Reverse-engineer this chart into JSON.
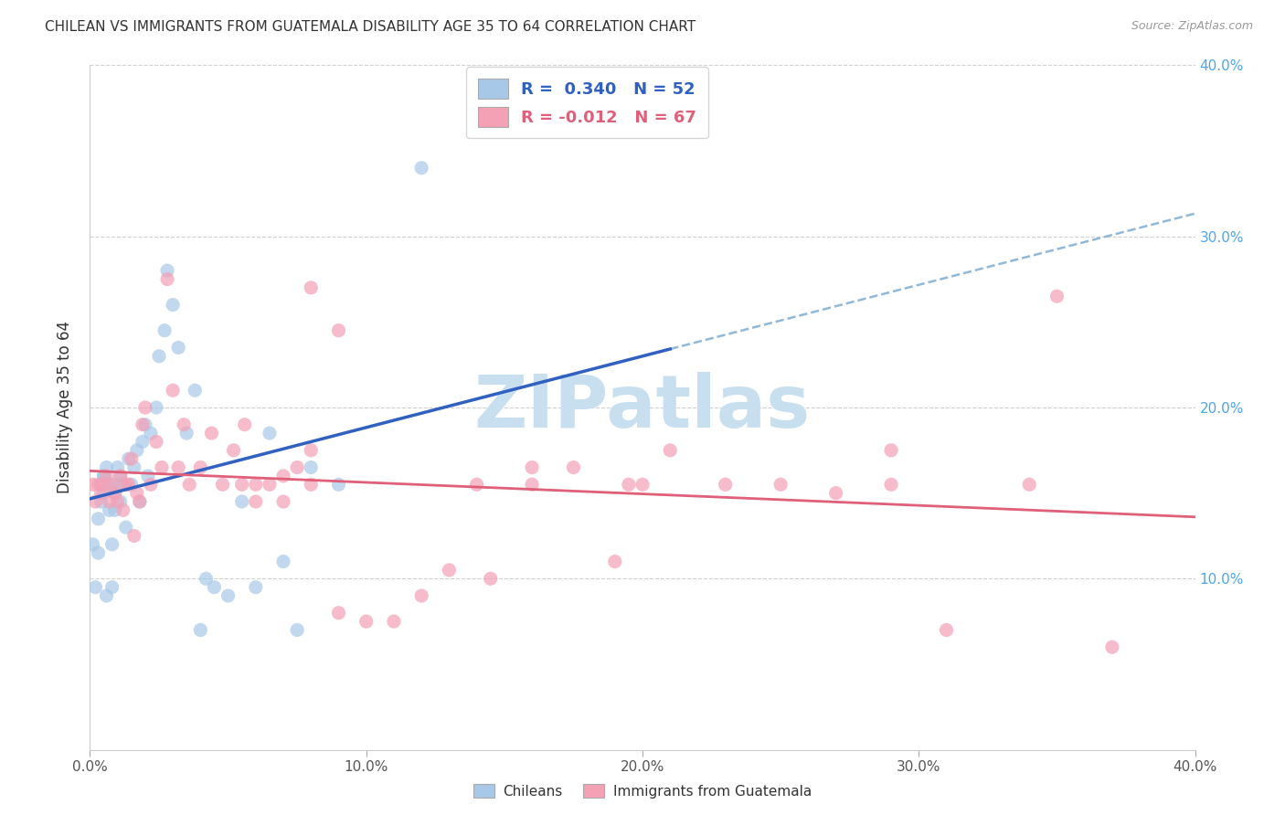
{
  "title": "CHILEAN VS IMMIGRANTS FROM GUATEMALA DISABILITY AGE 35 TO 64 CORRELATION CHART",
  "source": "Source: ZipAtlas.com",
  "ylabel_text": "Disability Age 35 to 64",
  "legend_label_1": "Chileans",
  "legend_label_2": "Immigrants from Guatemala",
  "R1": "0.340",
  "N1": "52",
  "R2": "-0.012",
  "N2": "67",
  "xlim": [
    0.0,
    0.4
  ],
  "ylim": [
    0.0,
    0.4
  ],
  "xticks": [
    0.0,
    0.1,
    0.2,
    0.3,
    0.4
  ],
  "yticks": [
    0.1,
    0.2,
    0.3,
    0.4
  ],
  "xticklabels": [
    "0.0%",
    "10.0%",
    "20.0%",
    "30.0%",
    "40.0%"
  ],
  "right_yticklabels": [
    "10.0%",
    "20.0%",
    "30.0%",
    "40.0%"
  ],
  "right_yticks": [
    0.1,
    0.2,
    0.3,
    0.4
  ],
  "color_blue": "#a8c8e8",
  "color_pink": "#f4a0b5",
  "line_blue": "#3060c0",
  "line_blue_dash": "#90b8d8",
  "line_pink": "#e0607a",
  "watermark_color": "#c8dff0",
  "blue_points_x": [
    0.001,
    0.002,
    0.003,
    0.003,
    0.004,
    0.004,
    0.005,
    0.005,
    0.005,
    0.006,
    0.006,
    0.007,
    0.007,
    0.008,
    0.008,
    0.009,
    0.009,
    0.01,
    0.01,
    0.011,
    0.011,
    0.012,
    0.013,
    0.014,
    0.015,
    0.016,
    0.017,
    0.018,
    0.019,
    0.02,
    0.021,
    0.022,
    0.024,
    0.025,
    0.027,
    0.028,
    0.03,
    0.032,
    0.035,
    0.038,
    0.04,
    0.042,
    0.045,
    0.05,
    0.055,
    0.06,
    0.065,
    0.07,
    0.075,
    0.08,
    0.09,
    0.12
  ],
  "blue_points_y": [
    0.12,
    0.095,
    0.135,
    0.115,
    0.145,
    0.155,
    0.16,
    0.15,
    0.16,
    0.165,
    0.09,
    0.14,
    0.155,
    0.12,
    0.095,
    0.15,
    0.14,
    0.155,
    0.165,
    0.16,
    0.145,
    0.155,
    0.13,
    0.17,
    0.155,
    0.165,
    0.175,
    0.145,
    0.18,
    0.19,
    0.16,
    0.185,
    0.2,
    0.23,
    0.245,
    0.28,
    0.26,
    0.235,
    0.185,
    0.21,
    0.07,
    0.1,
    0.095,
    0.09,
    0.145,
    0.095,
    0.185,
    0.11,
    0.07,
    0.165,
    0.155,
    0.34
  ],
  "pink_points_x": [
    0.001,
    0.002,
    0.003,
    0.004,
    0.005,
    0.006,
    0.007,
    0.008,
    0.009,
    0.01,
    0.011,
    0.012,
    0.013,
    0.014,
    0.015,
    0.016,
    0.017,
    0.018,
    0.019,
    0.02,
    0.022,
    0.024,
    0.026,
    0.028,
    0.03,
    0.032,
    0.034,
    0.036,
    0.04,
    0.044,
    0.048,
    0.052,
    0.056,
    0.06,
    0.065,
    0.07,
    0.075,
    0.08,
    0.09,
    0.1,
    0.11,
    0.12,
    0.13,
    0.145,
    0.16,
    0.175,
    0.19,
    0.2,
    0.21,
    0.23,
    0.25,
    0.27,
    0.29,
    0.31,
    0.34,
    0.37,
    0.35,
    0.29,
    0.195,
    0.16,
    0.14,
    0.08,
    0.09,
    0.055,
    0.08,
    0.07,
    0.06
  ],
  "pink_points_y": [
    0.155,
    0.145,
    0.155,
    0.15,
    0.155,
    0.16,
    0.145,
    0.155,
    0.15,
    0.145,
    0.16,
    0.14,
    0.155,
    0.155,
    0.17,
    0.125,
    0.15,
    0.145,
    0.19,
    0.2,
    0.155,
    0.18,
    0.165,
    0.275,
    0.21,
    0.165,
    0.19,
    0.155,
    0.165,
    0.185,
    0.155,
    0.175,
    0.19,
    0.145,
    0.155,
    0.145,
    0.165,
    0.155,
    0.08,
    0.075,
    0.075,
    0.09,
    0.105,
    0.1,
    0.155,
    0.165,
    0.11,
    0.155,
    0.175,
    0.155,
    0.155,
    0.15,
    0.155,
    0.07,
    0.155,
    0.06,
    0.265,
    0.175,
    0.155,
    0.165,
    0.155,
    0.27,
    0.245,
    0.155,
    0.175,
    0.16,
    0.155
  ]
}
